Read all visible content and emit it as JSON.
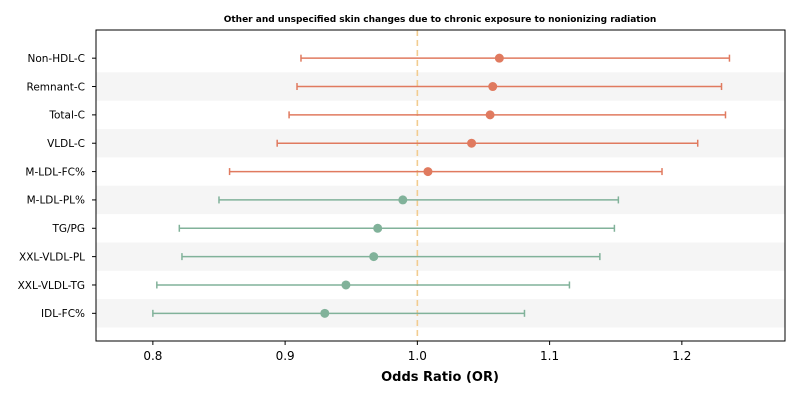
{
  "chart_data": {
    "type": "forest",
    "title": "Other and unspecified skin changes due to chronic exposure to nonionizing radiation",
    "xlabel": "Odds Ratio (OR)",
    "ylabel": "",
    "xlim": [
      0.757,
      1.278
    ],
    "xticks": [
      0.8,
      0.9,
      1.0,
      1.1,
      1.2
    ],
    "xtick_labels": [
      "0.8",
      "0.9",
      "1.0",
      "1.1",
      "1.2"
    ],
    "reference_line": 1.0,
    "colors": {
      "increased_risk": "#e07a5f",
      "decreased_risk": "#81b29a",
      "reference_line": "#f2cc8f",
      "band": "#f5f5f5"
    },
    "rows": [
      {
        "label": "Non-HDL-C",
        "or": 1.062,
        "lower": 0.912,
        "upper": 1.236
      },
      {
        "label": "Remnant-C",
        "or": 1.057,
        "lower": 0.909,
        "upper": 1.23
      },
      {
        "label": "Total-C",
        "or": 1.055,
        "lower": 0.903,
        "upper": 1.233
      },
      {
        "label": "VLDL-C",
        "or": 1.041,
        "lower": 0.894,
        "upper": 1.212
      },
      {
        "label": "M-LDL-FC%",
        "or": 1.008,
        "lower": 0.858,
        "upper": 1.185
      },
      {
        "label": "M-LDL-PL%",
        "or": 0.989,
        "lower": 0.85,
        "upper": 1.152
      },
      {
        "label": "TG/PG",
        "or": 0.97,
        "lower": 0.82,
        "upper": 1.149
      },
      {
        "label": "XXL-VLDL-PL",
        "or": 0.967,
        "lower": 0.822,
        "upper": 1.138
      },
      {
        "label": "XXL-VLDL-TG",
        "or": 0.946,
        "lower": 0.803,
        "upper": 1.115
      },
      {
        "label": "IDL-FC%",
        "or": 0.93,
        "lower": 0.8,
        "upper": 1.081
      }
    ]
  }
}
